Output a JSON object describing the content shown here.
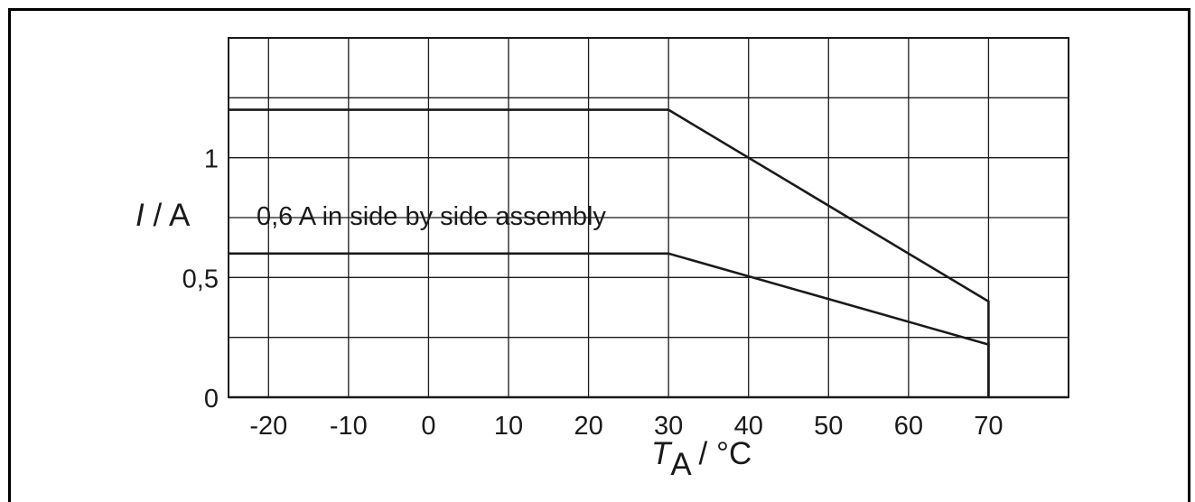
{
  "chart_data": {
    "type": "line",
    "x_ticks": [
      "-20",
      "-10",
      "0",
      "10",
      "20",
      "30",
      "40",
      "50",
      "60",
      "70"
    ],
    "y_ticks": [
      "0",
      "0,5",
      "1"
    ],
    "xlim": [
      -25,
      80
    ],
    "ylim": [
      0,
      1.5
    ],
    "grid": true,
    "y_gridlines": [
      0.25,
      0.5,
      0.75,
      1.0,
      1.25
    ],
    "series": [
      {
        "x": [
          -25,
          30,
          70,
          70
        ],
        "y": [
          1.2,
          1.2,
          0.4,
          0
        ]
      },
      {
        "x": [
          -25,
          30,
          70,
          70
        ],
        "y": [
          0.6,
          0.6,
          0.22,
          0
        ]
      }
    ],
    "ylabel": {
      "var": "I",
      "unit": " / A"
    },
    "xlabel": {
      "var": "T",
      "sub": "A",
      "unit": " / °C"
    },
    "annotation": {
      "text": "0,6 A in side by side assembly",
      "x": -21.5,
      "y": 0.72
    },
    "colors": {
      "line": "#1a1a1a",
      "grid": "#1a1a1a",
      "frame": "#000000"
    }
  }
}
